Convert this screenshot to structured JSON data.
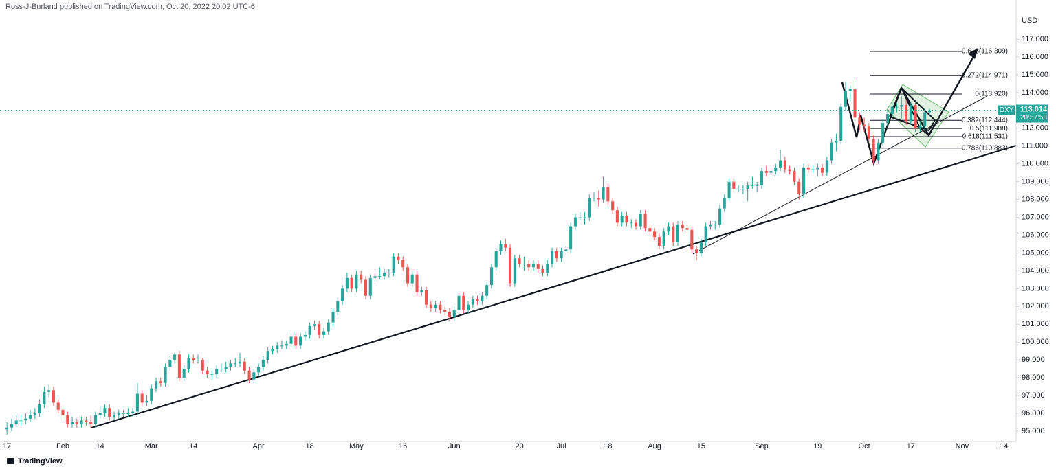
{
  "chart_data": {
    "type": "candlestick",
    "title": "Ross-J-Burland published on TradingView.com, Oct 20, 2022 20:02 UTC-6",
    "currency": "USD",
    "symbol": "DXY",
    "last_price": {
      "value": 113.014,
      "label": "113.014"
    },
    "countdown": "20:57:53",
    "brand": "TradingView",
    "up_color": "#26a69a",
    "down_color": "#ef5350",
    "ylim": [
      94.42,
      119.2
    ],
    "xlim": [
      -1.5,
      216.6
    ],
    "yticks": [
      {
        "value": 95,
        "label": "95.000"
      },
      {
        "value": 96,
        "label": "96.000"
      },
      {
        "value": 97,
        "label": "97.000"
      },
      {
        "value": 98,
        "label": "98.000"
      },
      {
        "value": 99,
        "label": "99.000"
      },
      {
        "value": 100,
        "label": "100.000"
      },
      {
        "value": 101,
        "label": "101.000"
      },
      {
        "value": 102,
        "label": "102.000"
      },
      {
        "value": 103,
        "label": "103.000"
      },
      {
        "value": 104,
        "label": "104.000"
      },
      {
        "value": 105,
        "label": "105.000"
      },
      {
        "value": 106,
        "label": "106.000"
      },
      {
        "value": 107,
        "label": "107.000"
      },
      {
        "value": 108,
        "label": "108.000"
      },
      {
        "value": 109,
        "label": "109.000"
      },
      {
        "value": 110,
        "label": "110.000"
      },
      {
        "value": 111,
        "label": "111.000"
      },
      {
        "value": 112,
        "label": "112.000"
      },
      {
        "value": 114,
        "label": "114.000"
      },
      {
        "value": 115,
        "label": "115.000"
      },
      {
        "value": 116,
        "label": "116.000"
      },
      {
        "value": 117,
        "label": "117.000"
      }
    ],
    "xticks": [
      {
        "value": 0,
        "label": "17"
      },
      {
        "value": 12,
        "label": "Feb"
      },
      {
        "value": 20,
        "label": "14"
      },
      {
        "value": 31,
        "label": "Mar"
      },
      {
        "value": 40,
        "label": "14"
      },
      {
        "value": 54,
        "label": "Apr"
      },
      {
        "value": 65,
        "label": "18"
      },
      {
        "value": 75,
        "label": "May"
      },
      {
        "value": 85,
        "label": "16"
      },
      {
        "value": 96,
        "label": "Jun"
      },
      {
        "value": 110,
        "label": "20"
      },
      {
        "value": 119,
        "label": "Jul"
      },
      {
        "value": 129,
        "label": "18"
      },
      {
        "value": 139,
        "label": "Aug"
      },
      {
        "value": 149,
        "label": "15"
      },
      {
        "value": 162,
        "label": "Sep"
      },
      {
        "value": 174,
        "label": "19"
      },
      {
        "value": 184,
        "label": "Oct"
      },
      {
        "value": 194,
        "label": "17"
      },
      {
        "value": 205,
        "label": "Nov"
      },
      {
        "value": 214,
        "label": "14"
      }
    ],
    "fib_levels": [
      {
        "value": 116.309,
        "label": "-0.618(116.309)"
      },
      {
        "value": 114.971,
        "label": "-0.272(114.971)"
      },
      {
        "value": 113.92,
        "label": "0(113.920)"
      },
      {
        "value": 112.444,
        "label": "0.382(112.444)"
      },
      {
        "value": 111.988,
        "label": "0.5(111.988)"
      },
      {
        "value": 111.531,
        "label": "0.618(111.531)"
      },
      {
        "value": 110.883,
        "label": "0.786(110.883)"
      }
    ],
    "candles": [
      [
        95.1,
        95.5,
        94.8,
        95.2
      ],
      [
        95.2,
        95.7,
        95.0,
        95.4
      ],
      [
        95.4,
        95.9,
        95.2,
        95.6
      ],
      [
        95.6,
        95.9,
        95.3,
        95.6
      ],
      [
        95.6,
        96.0,
        95.4,
        95.7
      ],
      [
        95.7,
        96.2,
        95.5,
        95.9
      ],
      [
        95.9,
        96.3,
        95.7,
        96.0
      ],
      [
        96.0,
        96.8,
        95.8,
        96.5
      ],
      [
        96.5,
        97.5,
        96.3,
        97.2
      ],
      [
        97.2,
        97.6,
        96.9,
        97.3
      ],
      [
        97.3,
        97.5,
        96.4,
        96.6
      ],
      [
        96.6,
        96.8,
        96.0,
        96.2
      ],
      [
        96.2,
        96.4,
        95.7,
        95.9
      ],
      [
        95.9,
        96.1,
        95.2,
        95.4
      ],
      [
        95.4,
        95.8,
        95.2,
        95.5
      ],
      [
        95.5,
        95.7,
        95.2,
        95.4
      ],
      [
        95.4,
        95.8,
        95.2,
        95.6
      ],
      [
        95.6,
        95.8,
        95.3,
        95.5
      ],
      [
        95.5,
        95.9,
        95.2,
        95.4
      ],
      [
        95.4,
        96.1,
        95.2,
        95.9
      ],
      [
        95.9,
        96.4,
        95.7,
        96.0
      ],
      [
        96.0,
        96.5,
        95.8,
        96.3
      ],
      [
        96.3,
        96.5,
        95.6,
        95.8
      ],
      [
        95.8,
        96.1,
        95.6,
        95.9
      ],
      [
        95.9,
        96.2,
        95.7,
        96.0
      ],
      [
        96.0,
        96.2,
        95.8,
        96.0
      ],
      [
        96.0,
        96.3,
        95.8,
        96.0
      ],
      [
        96.0,
        96.3,
        95.8,
        96.1
      ],
      [
        96.1,
        97.7,
        95.9,
        97.1
      ],
      [
        97.1,
        97.3,
        96.4,
        96.6
      ],
      [
        96.6,
        97.0,
        96.4,
        96.7
      ],
      [
        96.7,
        97.6,
        96.5,
        97.4
      ],
      [
        97.4,
        98.0,
        97.2,
        97.8
      ],
      [
        97.8,
        98.0,
        97.5,
        97.7
      ],
      [
        97.7,
        98.8,
        97.5,
        98.6
      ],
      [
        98.6,
        99.2,
        98.4,
        99.0
      ],
      [
        99.0,
        99.4,
        98.8,
        99.3
      ],
      [
        99.3,
        99.5,
        97.8,
        98.0
      ],
      [
        98.0,
        98.7,
        97.8,
        98.5
      ],
      [
        98.5,
        99.3,
        98.3,
        99.1
      ],
      [
        99.1,
        99.3,
        98.8,
        99.0
      ],
      [
        99.0,
        99.3,
        98.8,
        99.0
      ],
      [
        99.0,
        99.1,
        98.2,
        98.4
      ],
      [
        98.4,
        98.6,
        98.0,
        98.2
      ],
      [
        98.2,
        98.4,
        97.9,
        98.2
      ],
      [
        98.2,
        98.7,
        98.0,
        98.5
      ],
      [
        98.5,
        98.8,
        98.3,
        98.5
      ],
      [
        98.5,
        98.9,
        98.3,
        98.6
      ],
      [
        98.6,
        99.0,
        98.4,
        98.8
      ],
      [
        98.8,
        99.1,
        98.6,
        98.8
      ],
      [
        98.8,
        99.4,
        98.6,
        98.9
      ],
      [
        98.9,
        99.1,
        98.2,
        98.4
      ],
      [
        98.4,
        98.6,
        97.7,
        97.9
      ],
      [
        97.9,
        98.5,
        97.7,
        98.3
      ],
      [
        98.3,
        98.8,
        98.1,
        98.6
      ],
      [
        98.6,
        99.2,
        98.4,
        99.0
      ],
      [
        99.0,
        99.7,
        98.8,
        99.5
      ],
      [
        99.5,
        99.8,
        99.3,
        99.6
      ],
      [
        99.6,
        100.0,
        99.4,
        99.8
      ],
      [
        99.8,
        100.1,
        99.6,
        99.8
      ],
      [
        99.8,
        100.1,
        99.6,
        99.9
      ],
      [
        99.9,
        100.5,
        99.7,
        100.3
      ],
      [
        100.3,
        100.5,
        99.6,
        99.8
      ],
      [
        99.8,
        100.5,
        99.6,
        100.3
      ],
      [
        100.3,
        100.6,
        100.1,
        100.4
      ],
      [
        100.4,
        101.1,
        100.2,
        100.9
      ],
      [
        100.9,
        101.2,
        100.7,
        101.0
      ],
      [
        101.0,
        101.2,
        100.2,
        100.4
      ],
      [
        100.4,
        100.8,
        100.2,
        100.6
      ],
      [
        100.6,
        101.3,
        100.4,
        101.1
      ],
      [
        101.1,
        101.9,
        100.9,
        101.7
      ],
      [
        101.7,
        102.5,
        101.5,
        102.3
      ],
      [
        102.3,
        103.2,
        102.1,
        103.0
      ],
      [
        103.0,
        103.9,
        102.8,
        103.6
      ],
      [
        103.6,
        103.8,
        102.8,
        103.0
      ],
      [
        103.0,
        104.0,
        102.8,
        103.8
      ],
      [
        103.8,
        104.0,
        103.3,
        103.5
      ],
      [
        103.5,
        103.7,
        102.4,
        102.6
      ],
      [
        102.6,
        103.8,
        102.4,
        103.6
      ],
      [
        103.6,
        104.0,
        103.4,
        103.7
      ],
      [
        103.7,
        104.2,
        103.5,
        103.7
      ],
      [
        103.7,
        104.1,
        103.5,
        103.9
      ],
      [
        103.9,
        104.1,
        103.6,
        103.9
      ],
      [
        103.9,
        105.0,
        103.7,
        104.8
      ],
      [
        104.8,
        105.0,
        104.4,
        104.6
      ],
      [
        104.6,
        104.8,
        104.0,
        104.2
      ],
      [
        104.2,
        104.4,
        103.1,
        103.3
      ],
      [
        103.3,
        104.0,
        103.1,
        103.8
      ],
      [
        103.8,
        104.0,
        102.6,
        102.8
      ],
      [
        102.8,
        103.1,
        102.6,
        102.9
      ],
      [
        102.9,
        103.1,
        101.9,
        102.1
      ],
      [
        102.1,
        102.3,
        101.7,
        101.9
      ],
      [
        101.9,
        102.3,
        101.7,
        102.1
      ],
      [
        102.1,
        102.3,
        101.6,
        101.8
      ],
      [
        101.8,
        102.0,
        101.5,
        101.7
      ],
      [
        101.7,
        101.9,
        101.2,
        101.4
      ],
      [
        101.4,
        102.0,
        101.2,
        101.8
      ],
      [
        101.8,
        102.8,
        101.6,
        102.6
      ],
      [
        102.6,
        102.8,
        101.6,
        101.8
      ],
      [
        101.8,
        102.3,
        101.6,
        102.1
      ],
      [
        102.1,
        102.6,
        101.9,
        102.4
      ],
      [
        102.4,
        102.6,
        102.1,
        102.3
      ],
      [
        102.3,
        102.8,
        102.1,
        102.6
      ],
      [
        102.6,
        103.4,
        102.4,
        103.2
      ],
      [
        103.2,
        104.4,
        103.0,
        104.2
      ],
      [
        104.2,
        105.3,
        104.0,
        105.1
      ],
      [
        105.1,
        105.7,
        104.9,
        105.5
      ],
      [
        105.5,
        105.8,
        105.1,
        105.3
      ],
      [
        105.3,
        105.5,
        103.1,
        103.3
      ],
      [
        103.3,
        104.9,
        103.1,
        104.7
      ],
      [
        104.7,
        104.9,
        104.2,
        104.4
      ],
      [
        104.4,
        104.8,
        104.0,
        104.4
      ],
      [
        104.4,
        104.6,
        104.0,
        104.2
      ],
      [
        104.2,
        104.6,
        104.0,
        104.4
      ],
      [
        104.4,
        104.6,
        103.9,
        104.1
      ],
      [
        104.1,
        104.3,
        103.7,
        103.9
      ],
      [
        103.9,
        104.6,
        103.7,
        104.4
      ],
      [
        104.4,
        105.3,
        104.2,
        105.1
      ],
      [
        105.1,
        105.3,
        104.5,
        104.7
      ],
      [
        104.7,
        105.3,
        104.5,
        105.1
      ],
      [
        105.1,
        105.4,
        104.9,
        105.2
      ],
      [
        105.2,
        106.7,
        105.0,
        106.5
      ],
      [
        106.5,
        107.2,
        106.3,
        107.0
      ],
      [
        107.0,
        107.3,
        106.8,
        107.0
      ],
      [
        107.0,
        107.3,
        106.6,
        107.0
      ],
      [
        107.0,
        108.3,
        106.8,
        108.1
      ],
      [
        108.1,
        108.4,
        107.9,
        108.1
      ],
      [
        108.1,
        108.5,
        107.6,
        108.0
      ],
      [
        108.0,
        109.3,
        107.8,
        108.7
      ],
      [
        108.7,
        108.9,
        107.7,
        107.9
      ],
      [
        107.9,
        108.1,
        107.2,
        107.4
      ],
      [
        107.4,
        107.6,
        106.5,
        106.7
      ],
      [
        106.7,
        107.3,
        106.5,
        107.1
      ],
      [
        107.1,
        107.3,
        106.5,
        106.7
      ],
      [
        106.7,
        106.9,
        106.4,
        106.7
      ],
      [
        106.7,
        106.9,
        106.3,
        106.5
      ],
      [
        106.5,
        107.4,
        106.3,
        107.2
      ],
      [
        107.2,
        107.4,
        106.2,
        106.4
      ],
      [
        106.4,
        106.6,
        106.0,
        106.2
      ],
      [
        106.2,
        106.4,
        105.7,
        105.9
      ],
      [
        105.9,
        106.1,
        105.2,
        105.4
      ],
      [
        105.4,
        106.4,
        105.2,
        106.2
      ],
      [
        106.2,
        106.7,
        106.0,
        106.5
      ],
      [
        106.5,
        106.7,
        105.4,
        105.6
      ],
      [
        105.6,
        106.8,
        105.4,
        106.6
      ],
      [
        106.6,
        106.8,
        106.2,
        106.4
      ],
      [
        106.4,
        106.6,
        106.1,
        106.3
      ],
      [
        106.3,
        106.5,
        105.0,
        105.2
      ],
      [
        105.2,
        105.4,
        104.6,
        105.0
      ],
      [
        105.0,
        105.8,
        104.8,
        105.6
      ],
      [
        105.6,
        106.7,
        105.4,
        106.5
      ],
      [
        106.5,
        106.8,
        106.3,
        106.6
      ],
      [
        106.6,
        106.8,
        106.3,
        106.6
      ],
      [
        106.6,
        107.7,
        106.4,
        107.5
      ],
      [
        107.5,
        108.3,
        107.3,
        108.1
      ],
      [
        108.1,
        109.2,
        107.9,
        109.0
      ],
      [
        109.0,
        109.2,
        108.4,
        108.6
      ],
      [
        108.6,
        108.8,
        108.4,
        108.6
      ],
      [
        108.6,
        108.8,
        108.3,
        108.6
      ],
      [
        108.6,
        109.0,
        107.9,
        108.8
      ],
      [
        108.8,
        109.3,
        108.6,
        108.8
      ],
      [
        108.8,
        109.0,
        108.4,
        108.8
      ],
      [
        108.8,
        109.8,
        108.6,
        109.6
      ],
      [
        109.6,
        109.9,
        109.3,
        109.5
      ],
      [
        109.5,
        109.9,
        109.3,
        109.6
      ],
      [
        109.6,
        110.0,
        109.4,
        109.8
      ],
      [
        109.8,
        110.8,
        109.6,
        110.2
      ],
      [
        110.2,
        110.4,
        109.5,
        109.7
      ],
      [
        109.7,
        109.9,
        109.4,
        109.6
      ],
      [
        109.6,
        109.8,
        108.8,
        109.0
      ],
      [
        109.0,
        109.2,
        108.0,
        108.3
      ],
      [
        108.3,
        110.0,
        108.1,
        109.8
      ],
      [
        109.8,
        110.0,
        109.5,
        109.7
      ],
      [
        109.7,
        109.9,
        109.5,
        109.7
      ],
      [
        109.7,
        110.0,
        109.3,
        109.8
      ],
      [
        109.8,
        110.0,
        109.3,
        109.5
      ],
      [
        109.5,
        110.4,
        109.3,
        110.2
      ],
      [
        110.2,
        111.4,
        110.0,
        111.2
      ],
      [
        111.2,
        111.7,
        110.7,
        111.3
      ],
      [
        111.3,
        113.4,
        111.1,
        113.2
      ],
      [
        113.2,
        114.6,
        113.0,
        114.1
      ],
      [
        114.1,
        114.4,
        113.5,
        114.2
      ],
      [
        114.2,
        114.8,
        112.4,
        112.6
      ],
      [
        112.6,
        112.9,
        111.9,
        112.2
      ],
      [
        112.2,
        112.6,
        111.8,
        112.1
      ],
      [
        112.1,
        112.3,
        111.2,
        111.4
      ],
      [
        111.4,
        111.6,
        110.0,
        110.2
      ],
      [
        110.2,
        111.4,
        110.0,
        111.2
      ],
      [
        111.2,
        112.5,
        111.0,
        112.3
      ],
      [
        112.3,
        113.0,
        112.1,
        112.8
      ],
      [
        112.8,
        113.4,
        112.6,
        113.2
      ],
      [
        113.2,
        113.4,
        112.9,
        113.2
      ],
      [
        113.2,
        113.8,
        112.5,
        113.3
      ],
      [
        113.3,
        113.6,
        112.2,
        112.4
      ],
      [
        112.4,
        113.5,
        112.2,
        113.3
      ],
      [
        113.3,
        113.5,
        111.8,
        112.0
      ],
      [
        112.0,
        112.4,
        111.8,
        112.1
      ],
      [
        112.1,
        113.1,
        111.9,
        112.9
      ],
      [
        112.9,
        113.1,
        112.7,
        113.0
      ]
    ]
  }
}
